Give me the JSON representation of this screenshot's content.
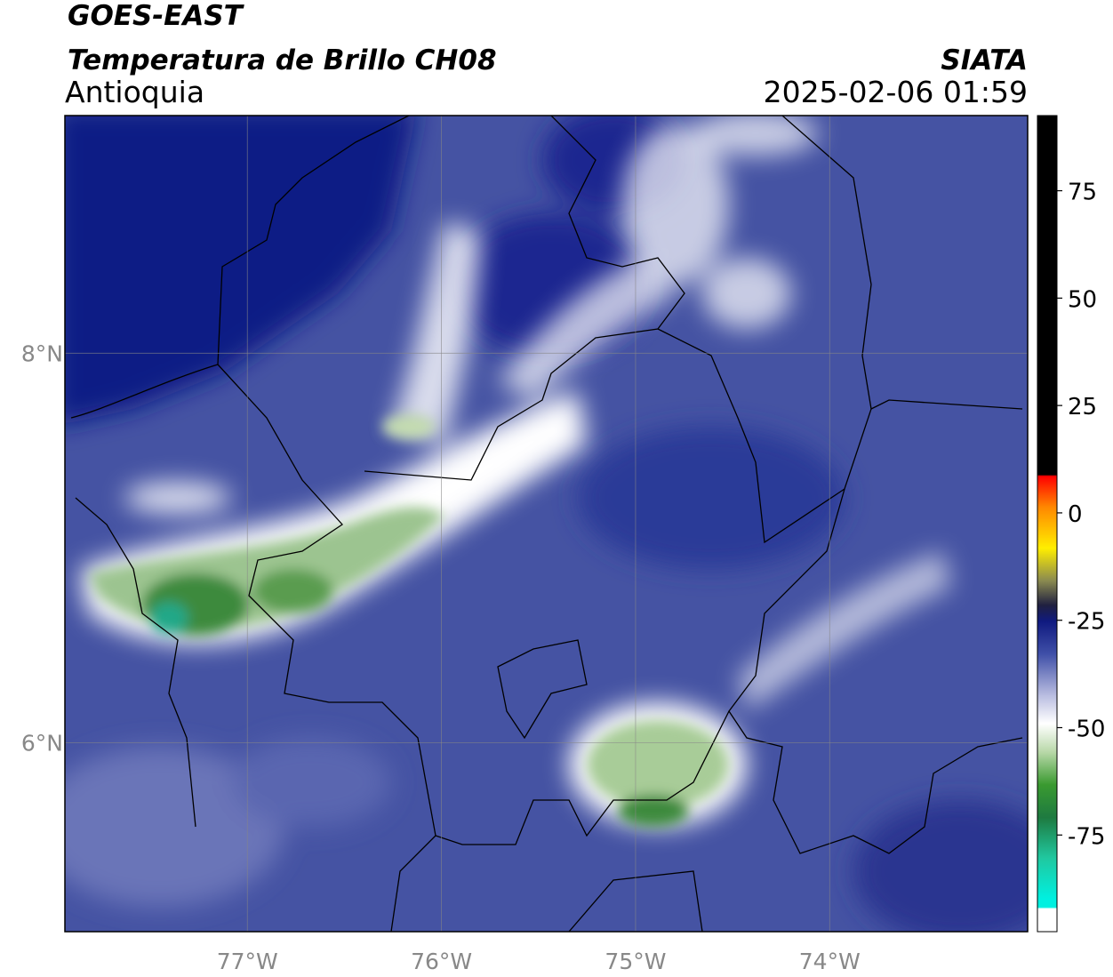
{
  "header": {
    "title": "GOES-EAST",
    "subtitle": "Temperatura de Brillo CH08",
    "region": "Antioquia",
    "source": "SIATA",
    "datetime": "2025-02-06 01:59"
  },
  "map": {
    "xlim": [
      -77.94,
      -72.98
    ],
    "ylim": [
      5.03,
      9.22
    ],
    "xticks": [
      {
        "value": -77,
        "label": "77°W"
      },
      {
        "value": -76,
        "label": "76°W"
      },
      {
        "value": -75,
        "label": "75°W"
      },
      {
        "value": -74,
        "label": "74°W"
      }
    ],
    "yticks": [
      {
        "value": 8,
        "label": "8°N"
      },
      {
        "value": 6,
        "label": "6°N"
      }
    ],
    "grid": true
  },
  "colorbar": {
    "clim": [
      -97.5,
      92.5
    ],
    "ticks": [
      75,
      50,
      25,
      0,
      -25,
      -50,
      -75
    ]
  }
}
